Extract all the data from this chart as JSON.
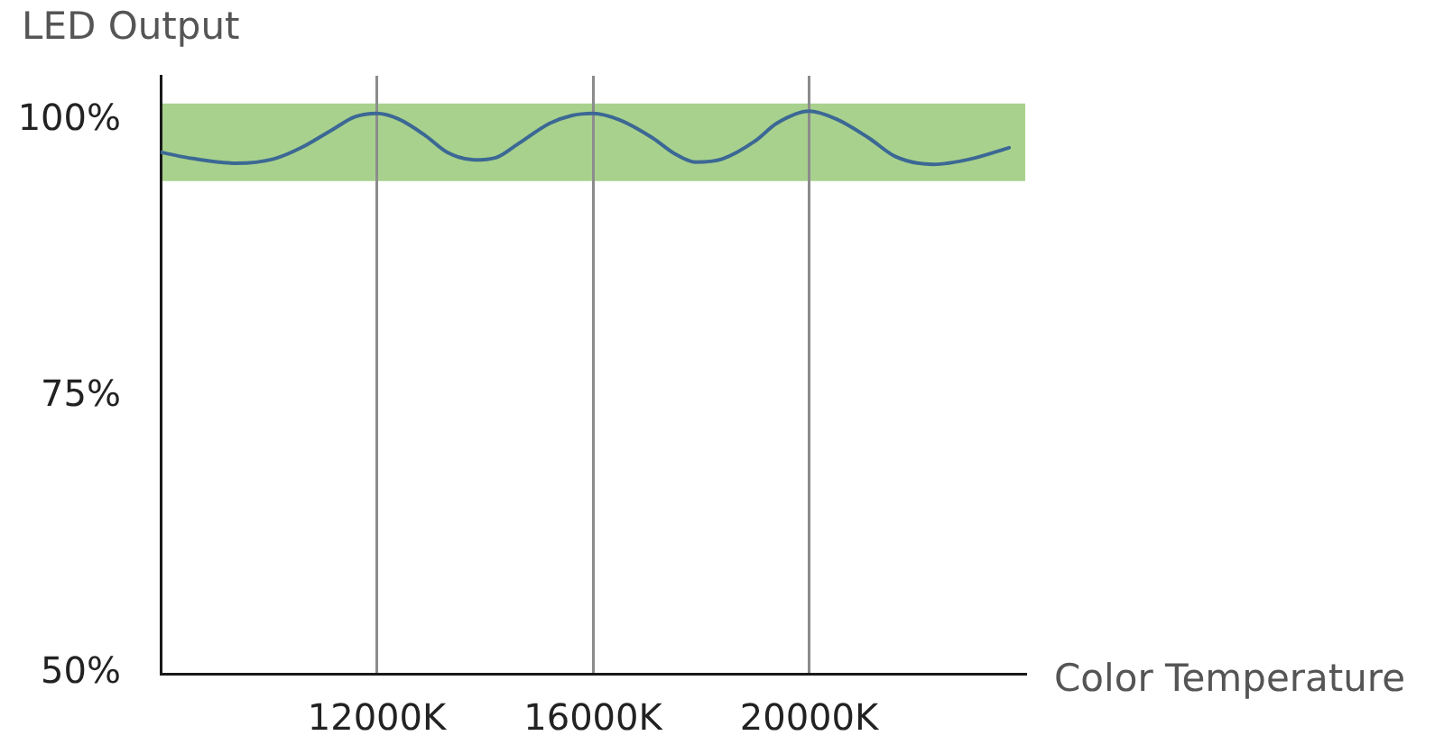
{
  "chart_data": {
    "type": "line",
    "xlabel": "Color Temperature",
    "ylabel": "LED Output",
    "x": [
      8000,
      8500,
      9400,
      10100,
      10600,
      11200,
      11600,
      12000,
      12400,
      12900,
      13300,
      13800,
      14200,
      14600,
      15200,
      15600,
      16000,
      16500,
      17100,
      17500,
      17900,
      18400,
      19000,
      19400,
      20000,
      20500,
      21100,
      21600,
      22300,
      23000,
      23700
    ],
    "values": [
      97.1,
      96.6,
      96.1,
      96.5,
      97.5,
      99.2,
      100.3,
      100.6,
      100.1,
      98.6,
      97.1,
      96.4,
      96.6,
      97.8,
      99.7,
      100.4,
      100.6,
      100.0,
      98.4,
      97.0,
      96.2,
      96.5,
      98.1,
      99.7,
      100.8,
      100.1,
      98.4,
      96.7,
      96.0,
      96.5,
      97.5
    ],
    "color": "#3b6894",
    "xlim": [
      8000,
      24000
    ],
    "xticks": [
      {
        "value": 12000,
        "label": "12000K"
      },
      {
        "value": 16000,
        "label": "16000K"
      },
      {
        "value": 20000,
        "label": "20000K"
      }
    ],
    "ylim": [
      50,
      104
    ],
    "yticks": [
      {
        "value": 50,
        "label": "50%"
      },
      {
        "value": 75,
        "label": "75%"
      },
      {
        "value": 100,
        "label": "100%"
      }
    ],
    "bands": [
      {
        "axis": "y",
        "from": 94.5,
        "to": 101.5,
        "color": "#a9d18e"
      }
    ],
    "grid": "x",
    "marker": "none",
    "line_style": "solid"
  }
}
